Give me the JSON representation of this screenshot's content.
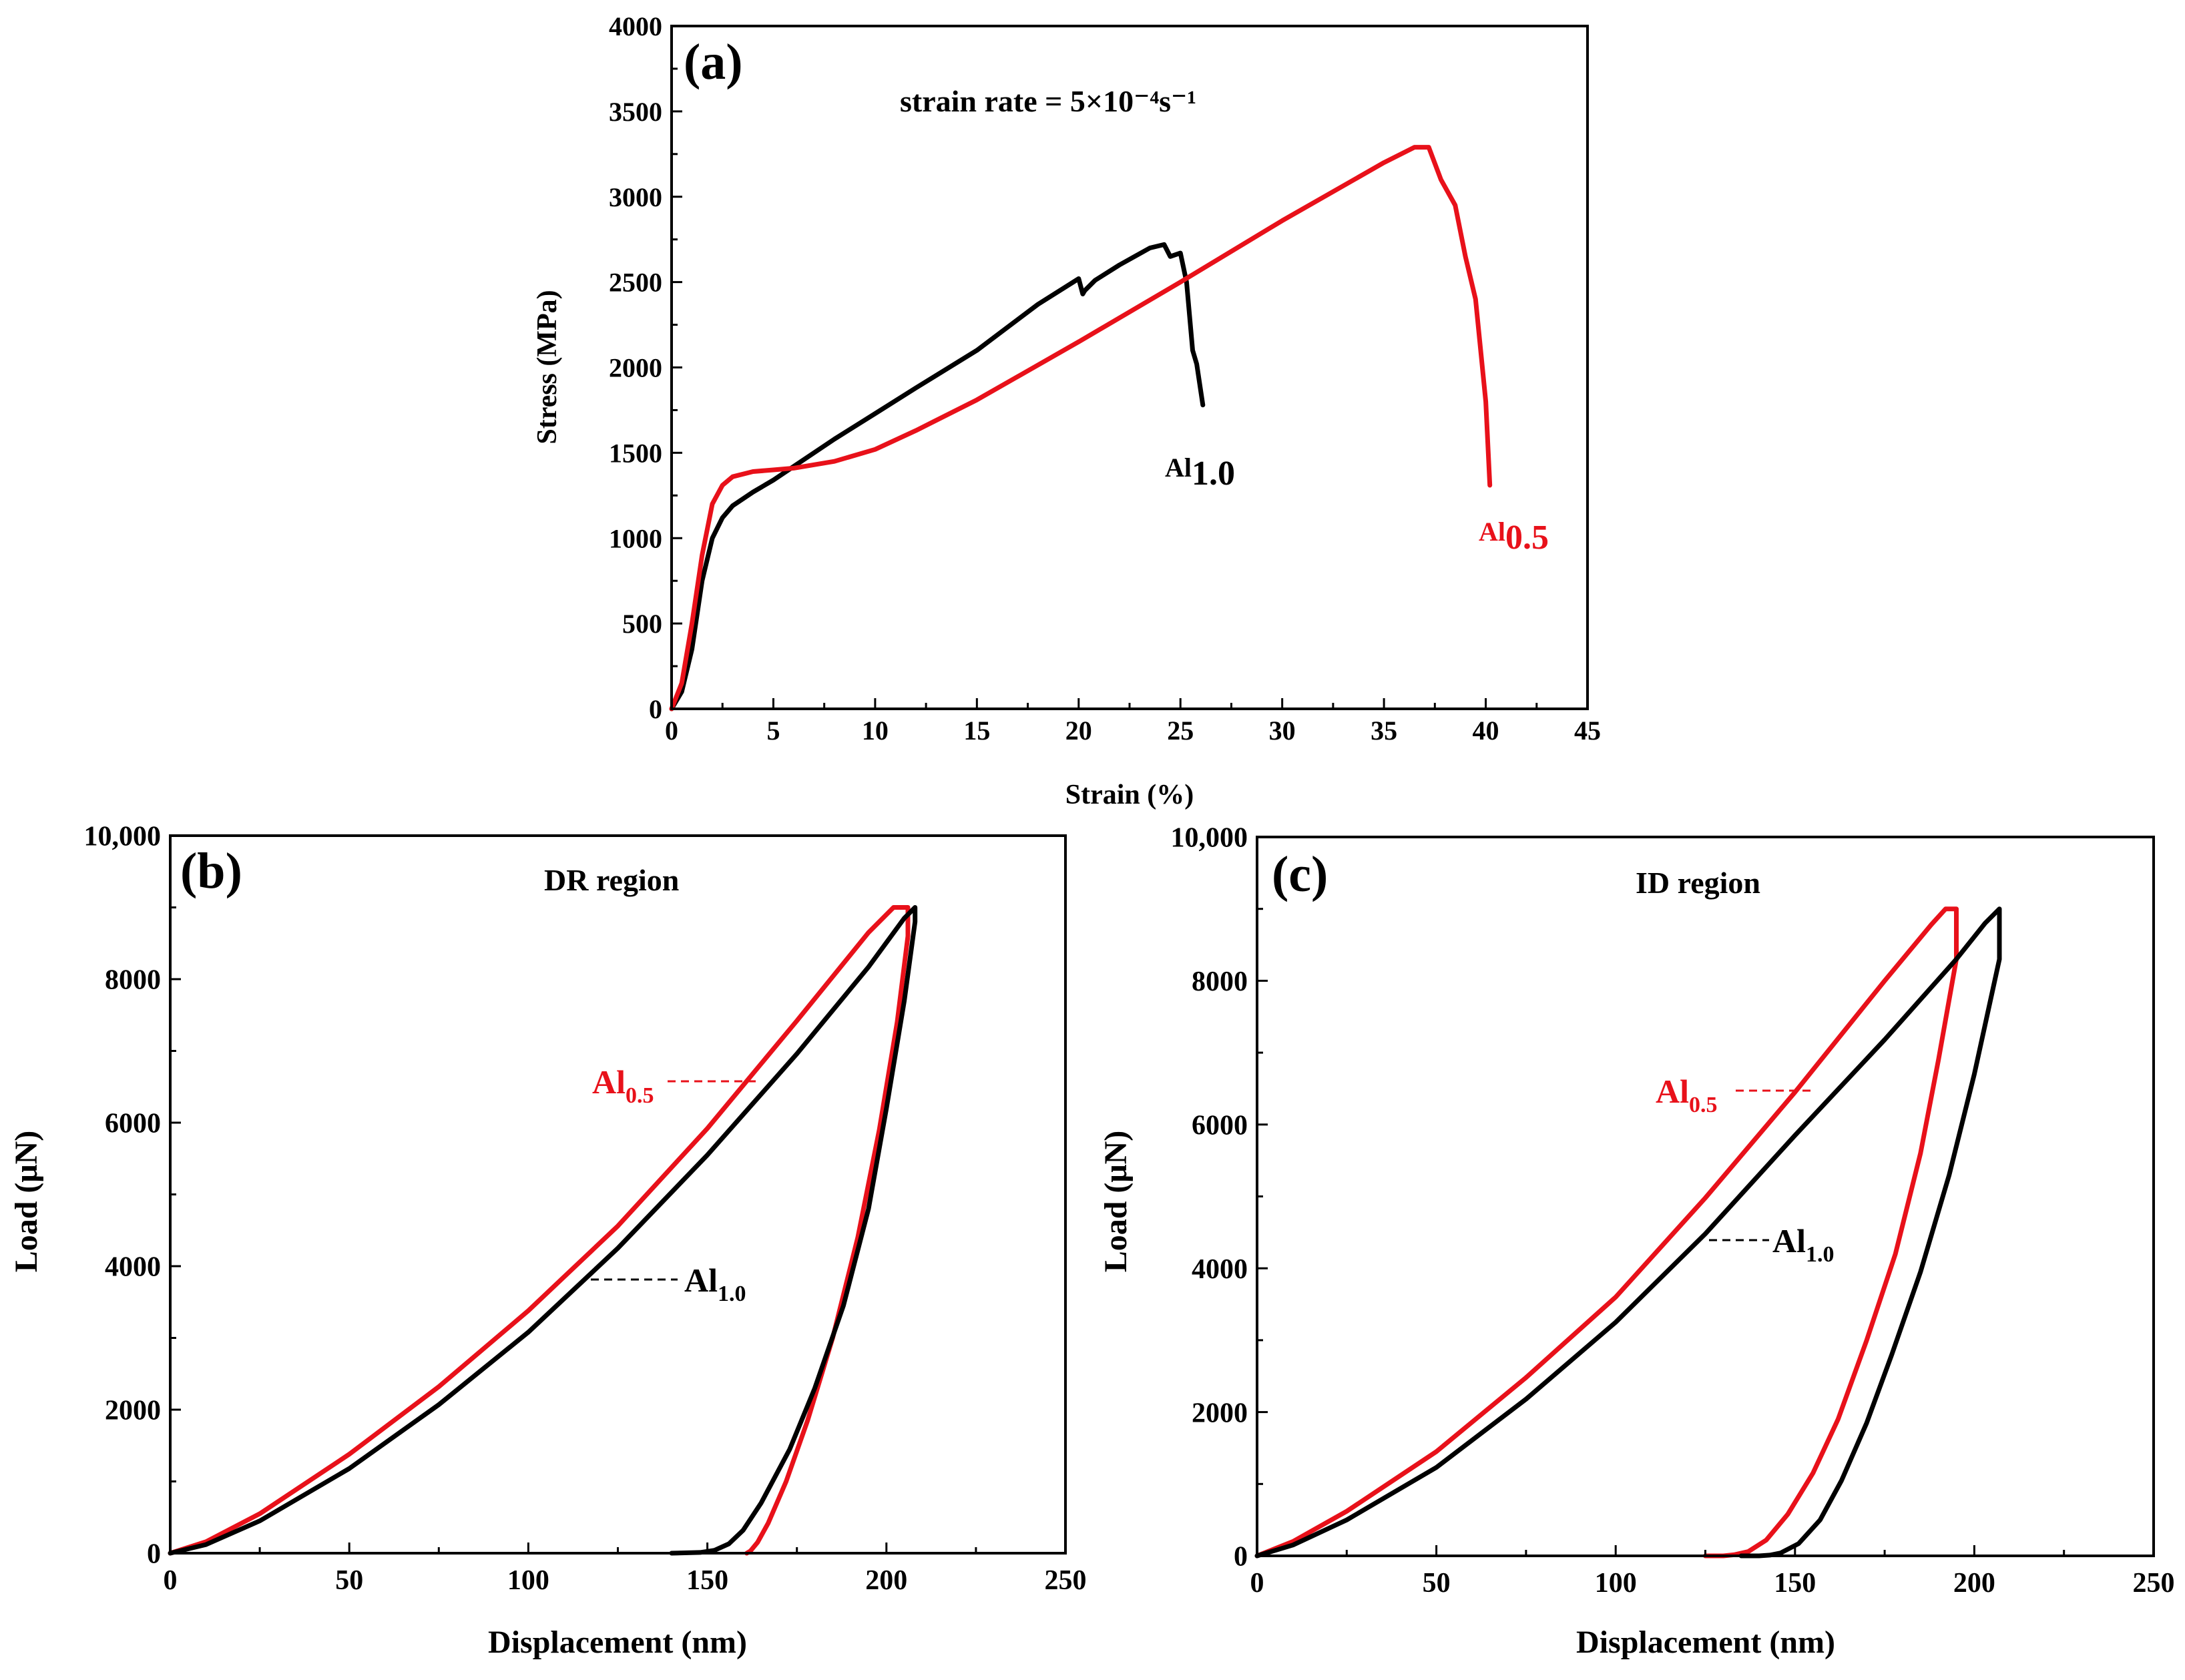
{
  "colors": {
    "al05": "#e8111a",
    "al10": "#000000"
  },
  "chart_data": [
    {
      "type": "line",
      "panel_label": "(a)",
      "title": "strain rate = 5×10⁻⁴s⁻¹",
      "xlabel": "Strain (%)",
      "ylabel": "Stress (MPa)",
      "xlim": [
        0,
        45
      ],
      "ylim": [
        0,
        4000
      ],
      "xticks": [
        "0",
        "5",
        "10",
        "15",
        "20",
        "25",
        "30",
        "35",
        "40",
        "45"
      ],
      "yticks": [
        "0",
        "500",
        "1000",
        "1500",
        "2000",
        "2500",
        "3000",
        "3500",
        "4000"
      ],
      "series": [
        {
          "name": "Al1.0",
          "label_main": "Al",
          "label_sub": "1.0",
          "color": "#000000",
          "x": [
            0,
            0.5,
            1.0,
            1.5,
            2.0,
            2.5,
            3.0,
            4.0,
            5.0,
            6.0,
            8.0,
            10.0,
            12.0,
            15.0,
            18.0,
            20.0,
            20.2,
            20.3,
            20.8,
            22.0,
            23.5,
            24.2,
            24.5,
            25.0,
            25.3,
            25.6,
            25.8,
            26.1
          ],
          "y": [
            0,
            100,
            350,
            750,
            1000,
            1120,
            1190,
            1270,
            1340,
            1420,
            1580,
            1730,
            1880,
            2100,
            2370,
            2520,
            2430,
            2450,
            2510,
            2600,
            2700,
            2720,
            2650,
            2670,
            2500,
            2100,
            2020,
            1780
          ]
        },
        {
          "name": "Al0.5",
          "label_main": "Al",
          "label_sub": "0.5",
          "color": "#e8111a",
          "x": [
            0,
            0.5,
            1.0,
            1.5,
            2.0,
            2.5,
            3.0,
            4.0,
            5.0,
            6.0,
            8.0,
            10.0,
            12.0,
            15.0,
            20.0,
            25.0,
            30.0,
            35.0,
            36.5,
            37.2,
            37.8,
            38.5,
            39.0,
            39.5,
            40.0,
            40.2
          ],
          "y": [
            0,
            150,
            500,
            900,
            1200,
            1310,
            1360,
            1390,
            1400,
            1410,
            1450,
            1520,
            1630,
            1810,
            2150,
            2500,
            2860,
            3200,
            3290,
            3290,
            3100,
            2950,
            2650,
            2400,
            1800,
            1310
          ]
        }
      ]
    },
    {
      "type": "line",
      "panel_label": "(b)",
      "title": "DR region",
      "xlabel": "Displacement (nm)",
      "ylabel": "Load (μN)",
      "xlim": [
        0,
        250
      ],
      "ylim": [
        0,
        10000
      ],
      "xticks": [
        "0",
        "50",
        "100",
        "150",
        "200",
        "250"
      ],
      "yticks": [
        "0",
        "2000",
        "4000",
        "6000",
        "8000",
        "10,000"
      ],
      "series": [
        {
          "name": "Al0.5",
          "label_main": "Al",
          "label_sub": "0.5",
          "color": "#e8111a",
          "x": [
            0,
            10,
            25,
            50,
            75,
            100,
            125,
            150,
            175,
            195,
            202,
            206,
            206,
            203,
            198,
            192,
            185,
            178,
            172,
            167,
            164,
            162,
            161
          ],
          "y": [
            0,
            160,
            550,
            1380,
            2320,
            3380,
            4560,
            5920,
            7420,
            8650,
            9000,
            9000,
            8600,
            7400,
            5900,
            4400,
            3000,
            1850,
            1000,
            420,
            150,
            30,
            0
          ]
        },
        {
          "name": "Al1.0",
          "label_main": "Al",
          "label_sub": "1.0",
          "color": "#000000",
          "x": [
            0,
            10,
            25,
            50,
            75,
            100,
            125,
            150,
            175,
            195,
            205,
            208,
            208,
            205,
            200,
            195,
            188,
            180,
            173,
            165,
            160,
            156,
            152,
            148,
            140
          ],
          "y": [
            0,
            120,
            450,
            1180,
            2070,
            3080,
            4250,
            5550,
            6960,
            8170,
            8850,
            9000,
            8800,
            7700,
            6200,
            4800,
            3450,
            2300,
            1450,
            700,
            320,
            130,
            40,
            10,
            0
          ]
        }
      ]
    },
    {
      "type": "line",
      "panel_label": "(c)",
      "title": "ID region",
      "xlabel": "Displacement (nm)",
      "ylabel": "Load (μN)",
      "xlim": [
        0,
        250
      ],
      "ylim": [
        0,
        10000
      ],
      "xticks": [
        "0",
        "50",
        "100",
        "150",
        "200",
        "250"
      ],
      "yticks": [
        "0",
        "2000",
        "4000",
        "6000",
        "8000",
        "10,000"
      ],
      "series": [
        {
          "name": "Al0.5",
          "label_main": "Al",
          "label_sub": "0.5",
          "color": "#e8111a",
          "x": [
            0,
            10,
            25,
            50,
            75,
            100,
            125,
            150,
            175,
            188,
            192,
            195,
            195,
            190,
            185,
            178,
            170,
            162,
            155,
            148,
            142,
            137,
            133,
            130,
            125
          ],
          "y": [
            0,
            200,
            620,
            1450,
            2480,
            3600,
            4980,
            6450,
            8000,
            8780,
            9000,
            9000,
            8300,
            6900,
            5600,
            4200,
            3000,
            1900,
            1150,
            580,
            220,
            60,
            15,
            0,
            0
          ]
        },
        {
          "name": "Al1.0",
          "label_main": "Al",
          "label_sub": "1.0",
          "color": "#000000",
          "x": [
            0,
            10,
            25,
            50,
            75,
            100,
            125,
            150,
            175,
            195,
            203,
            207,
            207,
            200,
            193,
            185,
            177,
            170,
            163,
            157,
            151,
            146,
            143,
            140,
            135
          ],
          "y": [
            0,
            150,
            500,
            1230,
            2180,
            3250,
            4480,
            5850,
            7180,
            8300,
            8800,
            9000,
            8300,
            6700,
            5300,
            3950,
            2800,
            1850,
            1050,
            500,
            170,
            40,
            10,
            0,
            0
          ]
        }
      ]
    }
  ]
}
